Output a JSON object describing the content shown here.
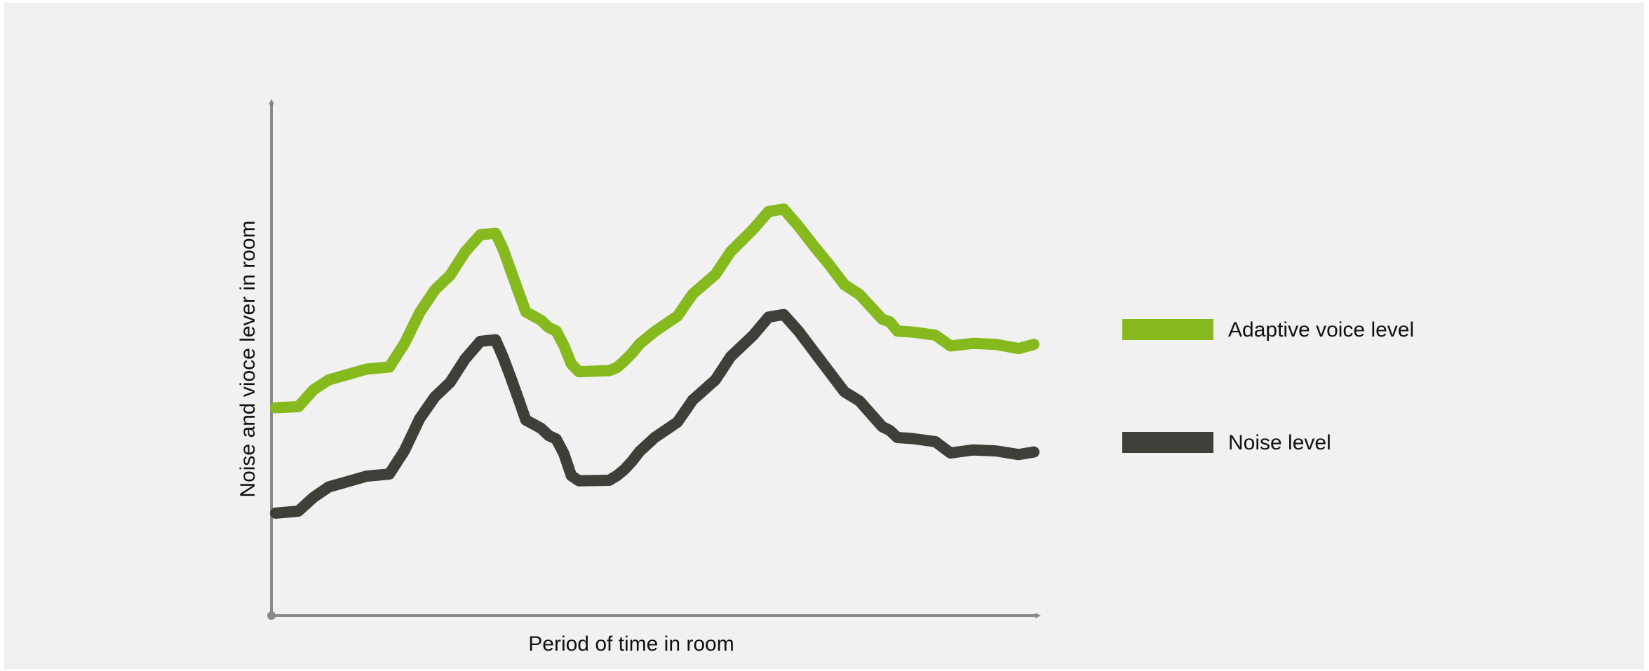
{
  "chart_data": {
    "type": "line",
    "title": "",
    "xlabel": "Period of time in room",
    "ylabel": "Noise and vioce lever in room",
    "xlim": [
      0,
      100
    ],
    "ylim": [
      0,
      100
    ],
    "grid": false,
    "ticks": false,
    "legend_position": "right",
    "series": [
      {
        "name": "Adaptive voice level",
        "color": "#86b91e",
        "x": [
          0,
          3,
          5,
          7,
          12,
          15,
          17,
          19,
          21,
          23,
          25,
          27,
          29,
          30,
          31,
          32,
          33,
          35,
          36,
          37,
          38,
          39,
          40,
          44,
          45,
          46,
          47,
          48,
          50,
          53,
          55,
          58,
          60,
          63,
          65,
          67,
          69,
          71,
          73,
          75,
          77,
          80,
          81,
          82,
          84,
          86,
          87,
          89,
          92,
          95,
          98,
          100
        ],
        "y": [
          40.4,
          40.6,
          43.9,
          45.8,
          47.9,
          48.3,
          52.9,
          58.9,
          63.3,
          66.1,
          70.7,
          74.0,
          74.3,
          71.2,
          67.1,
          63.0,
          59.0,
          57.4,
          56.0,
          55.3,
          52.5,
          48.9,
          47.4,
          47.6,
          48.2,
          49.5,
          51.0,
          52.8,
          55.2,
          58.2,
          62.5,
          66.3,
          70.7,
          75.1,
          78.5,
          79.0,
          75.6,
          71.8,
          68.2,
          64.3,
          62.4,
          57.6,
          57.1,
          55.3,
          55.1,
          54.7,
          54.5,
          52.4,
          52.9,
          52.7,
          51.9,
          52.7
        ]
      },
      {
        "name": "Noise level",
        "color": "#3e3f39",
        "x": [
          0,
          3,
          5,
          7,
          12,
          15,
          17,
          19,
          21,
          23,
          25,
          27,
          29,
          30,
          31,
          32,
          33,
          35,
          36,
          37,
          38,
          39,
          40,
          44,
          45,
          46,
          47,
          48,
          50,
          53,
          55,
          58,
          60,
          63,
          65,
          67,
          69,
          71,
          73,
          75,
          77,
          80,
          81,
          82,
          84,
          86,
          87,
          89,
          92,
          95,
          98,
          100
        ],
        "y": [
          19.9,
          20.3,
          23.0,
          25.0,
          27.1,
          27.5,
          32.1,
          38.3,
          42.5,
          45.3,
          49.9,
          53.3,
          53.6,
          50.2,
          46.3,
          42.2,
          38.0,
          36.4,
          35.0,
          34.3,
          31.5,
          27.2,
          26.2,
          26.3,
          27.2,
          28.4,
          30.0,
          31.9,
          34.6,
          37.6,
          41.9,
          45.8,
          50.3,
          54.5,
          58.0,
          58.5,
          55.2,
          51.3,
          47.4,
          43.5,
          41.7,
          36.7,
          36.0,
          34.6,
          34.4,
          34.0,
          33.8,
          31.6,
          32.2,
          32.0,
          31.3,
          31.8
        ]
      }
    ]
  },
  "style": {
    "panel_background": "#f1f1f1",
    "axis_color": "#898985"
  }
}
